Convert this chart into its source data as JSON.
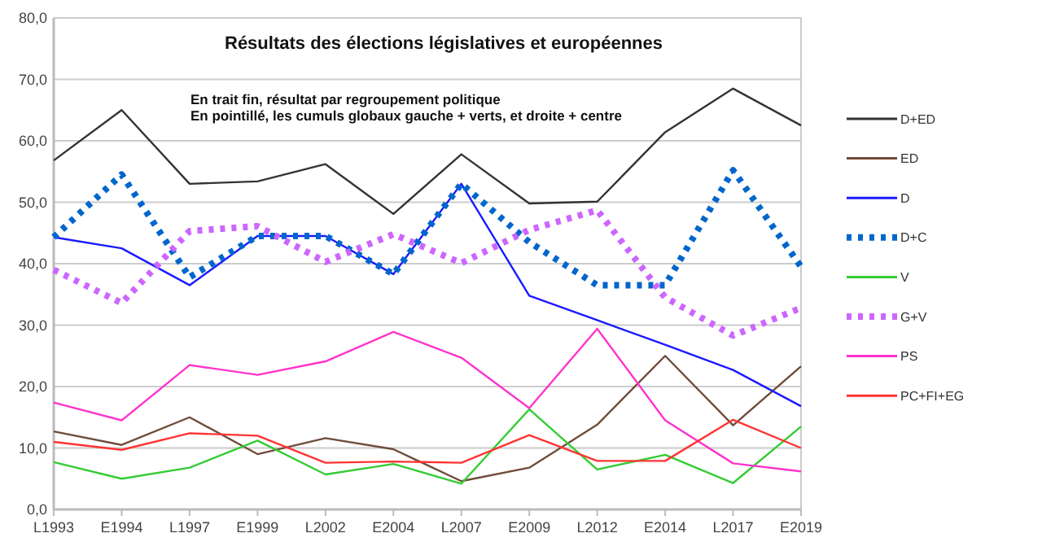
{
  "chart_data": {
    "type": "line",
    "title": "Résultats des élections législatives et européennes",
    "annotations": [
      "En trait fin, résultat par regroupement politique",
      "En pointillé, les cumuls globaux gauche + verts, et droite + centre"
    ],
    "categories": [
      "L1993",
      "E1994",
      "L1997",
      "E1999",
      "L2002",
      "E2004",
      "L2007",
      "E2009",
      "L2012",
      "E2014",
      "L2017",
      "E2019"
    ],
    "ylim": [
      0,
      80
    ],
    "yticks": [
      {
        "value": 0,
        "label": "0,0"
      },
      {
        "value": 10,
        "label": "10,0"
      },
      {
        "value": 20,
        "label": "20,0"
      },
      {
        "value": 30,
        "label": "30,0"
      },
      {
        "value": 40,
        "label": "40,0"
      },
      {
        "value": 50,
        "label": "50,0"
      },
      {
        "value": 60,
        "label": "60,0"
      },
      {
        "value": 70,
        "label": "70,0"
      },
      {
        "value": 80,
        "label": "80,0"
      }
    ],
    "grid": "y",
    "legend": "right",
    "marker": "none",
    "series": [
      {
        "name": "D+ED",
        "color": "#333333",
        "line_style": "solid",
        "values": [
          56.8,
          65,
          53,
          53.4,
          56.2,
          48.1,
          57.8,
          49.8,
          50.1,
          61.4,
          68.5,
          62.5
        ]
      },
      {
        "name": "ED",
        "color": "#704c3a",
        "line_style": "solid",
        "values": [
          12.7,
          10.5,
          15,
          9,
          11.6,
          9.8,
          4.6,
          6.8,
          13.8,
          25,
          13.7,
          23.3
        ]
      },
      {
        "name": "D",
        "color": "#1a1aff",
        "line_style": "solid",
        "values": [
          44.3,
          42.5,
          36.5,
          44.5,
          44.5,
          38.3,
          53,
          34.8,
          30.8,
          26.8,
          22.7,
          16.8
        ]
      },
      {
        "name": "D+C",
        "color": "#0066cc",
        "line_style": "dotted",
        "values": [
          44.3,
          54.5,
          37.8,
          44.5,
          44.5,
          38.3,
          53,
          43.5,
          36.5,
          36.5,
          55.2,
          39.5
        ]
      },
      {
        "name": "V",
        "color": "#33cc33",
        "line_style": "solid",
        "values": [
          7.7,
          5,
          6.8,
          11.2,
          5.7,
          7.4,
          4.2,
          16.3,
          6.5,
          8.9,
          4.3,
          13.5
        ]
      },
      {
        "name": "G+V",
        "color": "#cc66ff",
        "line_style": "dotted",
        "values": [
          39,
          33.6,
          45.3,
          46.1,
          40.3,
          44.8,
          40.1,
          45.5,
          48.7,
          34.5,
          28.3,
          32.8
        ]
      },
      {
        "name": "PS",
        "color": "#ff33cc",
        "line_style": "solid",
        "values": [
          17.4,
          14.5,
          23.5,
          21.9,
          24.1,
          28.9,
          24.7,
          16.5,
          29.4,
          14.5,
          7.5,
          6.2
        ]
      },
      {
        "name": "PC+FI+EG",
        "color": "#ff3333",
        "line_style": "solid",
        "values": [
          11,
          9.7,
          12.4,
          12,
          7.6,
          7.8,
          7.6,
          12.1,
          7.9,
          7.9,
          14.6,
          10
        ]
      }
    ]
  }
}
